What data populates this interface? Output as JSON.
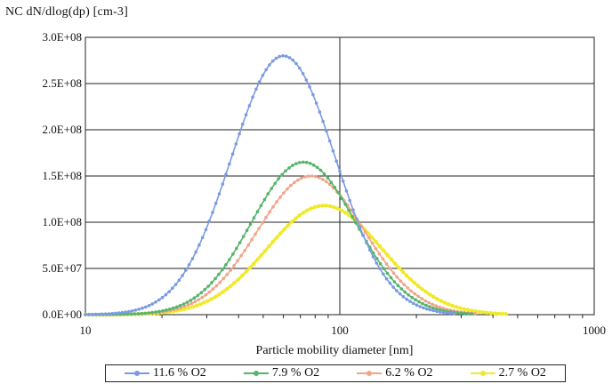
{
  "chart_data": {
    "type": "line",
    "title": "",
    "ylabel": "NC    dN/dlog(dp) [cm-3]",
    "xlabel": "Particle mobility diameter [nm]",
    "x_scale": "log",
    "xlim": [
      10,
      1000
    ],
    "ylim": [
      0,
      300000000
    ],
    "x_ticks": [
      10,
      100,
      1000
    ],
    "x_tick_labels": [
      "10",
      "100",
      "1000"
    ],
    "y_ticks": [
      0,
      50000000,
      100000000,
      150000000,
      200000000,
      250000000,
      300000000
    ],
    "y_tick_labels": [
      "0.0E+00",
      "5.0E+07",
      "1.0E+08",
      "1.5E+08",
      "2.0E+08",
      "2.5E+08",
      "3.0E+08"
    ],
    "grid": true,
    "legend_position": "bottom",
    "series": [
      {
        "name": "11.6 % O2",
        "color": "#7b9be0",
        "peak_diameter_nm": 60,
        "peak_value": 280000000,
        "gsd": 1.6,
        "x_range": [
          10,
          280
        ]
      },
      {
        "name": "7.9 % O2",
        "color": "#55b56a",
        "peak_diameter_nm": 72,
        "peak_value": 165000000,
        "gsd": 1.6,
        "x_range": [
          10,
          330
        ]
      },
      {
        "name": "6.2 % O2",
        "color": "#f0a58a",
        "peak_diameter_nm": 77,
        "peak_value": 150000000,
        "gsd": 1.62,
        "x_range": [
          10,
          340
        ]
      },
      {
        "name": "2.7 % O2",
        "color": "#f0ea2a",
        "peak_diameter_nm": 87,
        "peak_value": 118000000,
        "gsd": 1.68,
        "x_range": [
          10,
          450
        ]
      }
    ]
  }
}
